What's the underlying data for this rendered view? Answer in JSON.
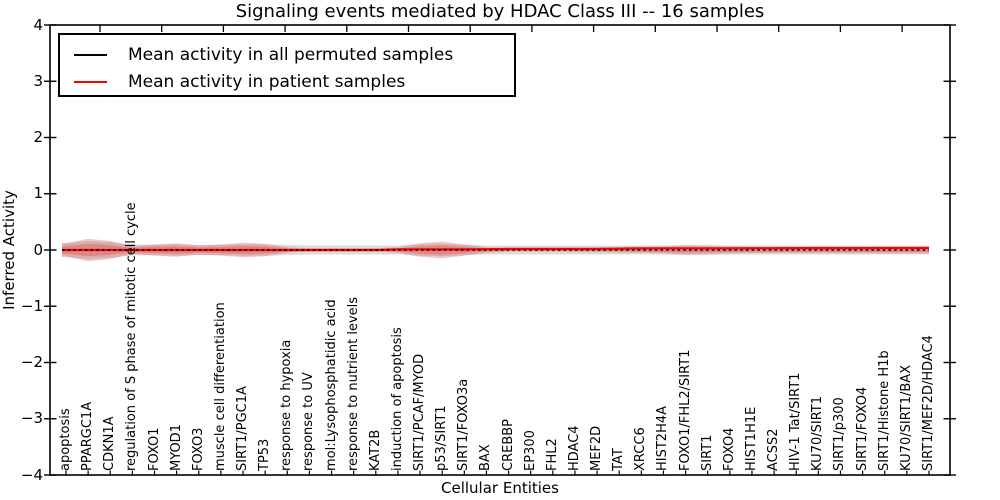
{
  "title": "Signaling events mediated by HDAC Class III -- 16 samples",
  "legend": {
    "position": "upper left",
    "items": [
      {
        "label": "Mean activity in all permuted samples",
        "color": "#000000"
      },
      {
        "label": "Mean activity in patient samples",
        "color": "#ff0000"
      }
    ]
  },
  "colors": {
    "patient_line": "#ff0000",
    "permuted_line": "#000000",
    "patient_spread_fill": "#d94f4f",
    "permuted_spread_fill": "#d3d3d3"
  },
  "chart_data": {
    "type": "line",
    "title": "Signaling events mediated by HDAC Class III -- 16 samples",
    "xlabel": "Cellular Entities",
    "ylabel": "Inferred Activity",
    "ylim": [
      -4,
      4
    ],
    "ytick_labels": [
      "4",
      "3",
      "2",
      "1",
      "0",
      "−1",
      "−2",
      "−3",
      "−4"
    ],
    "ytick_values": [
      4,
      3,
      2,
      1,
      0,
      -1,
      -2,
      -3,
      -4
    ],
    "grid": false,
    "legend_position": "upper left",
    "categories": [
      "apoptosis",
      "PPARGC1A",
      "CDKN1A",
      "regulation of S phase of mitotic cell cycle",
      "FOXO1",
      "MYOD1",
      "FOXO3",
      "muscle cell differentiation",
      "SIRT1/PGC1A",
      "TP53",
      "response to hypoxia",
      "response to UV",
      "mol:Lysophosphatidic acid",
      "response to nutrient levels",
      "KAT2B",
      "induction of apoptosis",
      "SIRT1/PCAF/MYOD",
      "p53/SIRT1",
      "SIRT1/FOXO3a",
      "BAX",
      "CREBBP",
      "EP300",
      "FHL2",
      "HDAC4",
      "MEF2D",
      "TAT",
      "XRCC6",
      "HIST2H4A",
      "FOXO1/FHL2/SIRT1",
      "SIRT1",
      "FOXO4",
      "HIST1H1E",
      "ACSS2",
      "HIV-1 Tat/SIRT1",
      "KU70/SIRT1",
      "SIRT1/p300",
      "SIRT1/FOXO4",
      "SIRT1/Histone H1b",
      "KU70/SIRT1/BAX",
      "SIRT1/MEF2D/HDAC4"
    ],
    "series": [
      {
        "name": "Mean activity in all permuted samples",
        "color": "#000000",
        "values": [
          0,
          0,
          0,
          0,
          0,
          0,
          0,
          0,
          0,
          0,
          0,
          0,
          0,
          0,
          0,
          0,
          0,
          0,
          0,
          0,
          0,
          0,
          0,
          0,
          0,
          0,
          0,
          0,
          0,
          0,
          0,
          0,
          0,
          0,
          0,
          0,
          0,
          0,
          0,
          0
        ]
      },
      {
        "name": "Mean activity in patient samples",
        "color": "#ff0000",
        "values": [
          0,
          0,
          0,
          0,
          0,
          0,
          0,
          0,
          0,
          0,
          0,
          0,
          0,
          0,
          0,
          0.01,
          0.01,
          0.01,
          0.01,
          0.015,
          0.02,
          0.02,
          0.02,
          0.02,
          0.02,
          0.025,
          0.03,
          0.03,
          0.03,
          0.03,
          0.03,
          0.032,
          0.032,
          0.033,
          0.033,
          0.034,
          0.034,
          0.035,
          0.035,
          0.035
        ]
      }
    ],
    "patient_spread_halfwidth": [
      0.12,
      0.2,
      0.16,
      0.07,
      0.1,
      0.12,
      0.08,
      0.1,
      0.13,
      0.11,
      0.05,
      0.03,
      0.03,
      0.03,
      0.03,
      0.05,
      0.12,
      0.15,
      0.1,
      0.05,
      0.03,
      0.03,
      0.03,
      0.035,
      0.04,
      0.045,
      0.05,
      0.06,
      0.08,
      0.07,
      0.06,
      0.055,
      0.055,
      0.055,
      0.057,
      0.057,
      0.057,
      0.06,
      0.06,
      0.062
    ],
    "permuted_spread_halfwidth": [
      0.12,
      0.16,
      0.14,
      0.1,
      0.09,
      0.1,
      0.09,
      0.09,
      0.1,
      0.1,
      0.09,
      0.08,
      0.08,
      0.08,
      0.08,
      0.08,
      0.1,
      0.11,
      0.09,
      0.08,
      0.08,
      0.08,
      0.08,
      0.08,
      0.08,
      0.08,
      0.08,
      0.08,
      0.09,
      0.09,
      0.08,
      0.08,
      0.08,
      0.08,
      0.08,
      0.08,
      0.08,
      0.08,
      0.08,
      0.08
    ]
  }
}
